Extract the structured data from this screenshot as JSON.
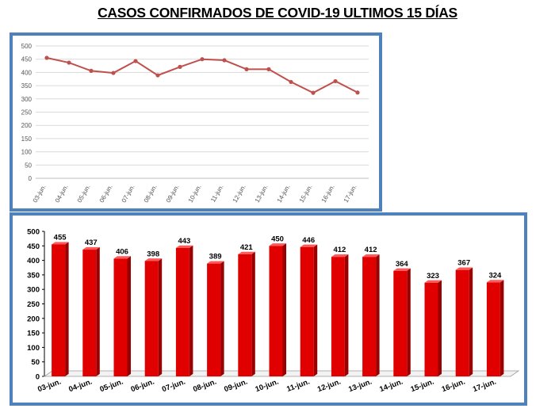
{
  "title": "CASOS CONFIRMADOS DE COVID-19 ULTIMOS 15 DÍAS",
  "colors": {
    "frame_border": "#4f81bd",
    "line": "#c0504d",
    "bar": "#e00000",
    "bar_side": "#990000",
    "bar_top": "#ff5a5a"
  },
  "chart_data": [
    {
      "type": "line",
      "title": "",
      "categories": [
        "03-jun.",
        "04-jun.",
        "05-jun.",
        "06-jun.",
        "07-jun.",
        "08-jun.",
        "09-jun.",
        "10-jun.",
        "11-jun.",
        "12-jun.",
        "13-jun.",
        "14-jun.",
        "15-jun.",
        "16-jun.",
        "17-jun."
      ],
      "values": [
        455,
        437,
        406,
        398,
        443,
        389,
        421,
        450,
        446,
        412,
        412,
        364,
        323,
        367,
        324
      ],
      "yticks": [
        "0",
        "50",
        "100",
        "150",
        "200",
        "250",
        "300",
        "350",
        "400",
        "450",
        "500"
      ],
      "ylim": [
        0,
        500
      ],
      "grid": true,
      "legend": "none"
    },
    {
      "type": "bar",
      "title": "",
      "categories": [
        "03-jun.",
        "04-jun.",
        "05-jun.",
        "06-jun.",
        "07-jun.",
        "08-jun.",
        "09-jun.",
        "10-jun.",
        "11-jun.",
        "12-jun.",
        "13-jun.",
        "14-jun.",
        "15-jun.",
        "16-jun.",
        "17-jun."
      ],
      "values": [
        455,
        437,
        406,
        398,
        443,
        389,
        421,
        450,
        446,
        412,
        412,
        364,
        323,
        367,
        324
      ],
      "data_labels": [
        "455",
        "437",
        "406",
        "398",
        "443",
        "389",
        "421",
        "450",
        "446",
        "412",
        "412",
        "364",
        "323",
        "367",
        "324"
      ],
      "yticks": [
        "0",
        "50",
        "100",
        "150",
        "200",
        "250",
        "300",
        "350",
        "400",
        "450",
        "500"
      ],
      "ylim": [
        0,
        500
      ],
      "grid": false,
      "legend": "none",
      "style": "3d-columns"
    }
  ]
}
